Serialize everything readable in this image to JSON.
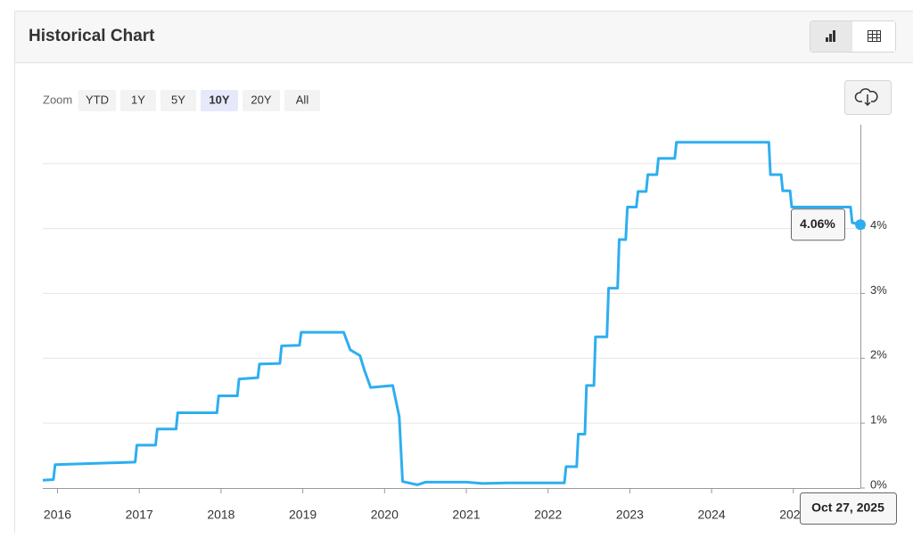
{
  "header": {
    "title": "Historical Chart"
  },
  "zoom": {
    "label": "Zoom",
    "buttons": [
      "YTD",
      "1Y",
      "5Y",
      "10Y",
      "20Y",
      "All"
    ],
    "active_index": 3
  },
  "chart_data": {
    "type": "line",
    "series": [
      {
        "color": "#2eaef0",
        "x": [
          2015.82,
          2015.95,
          2015.97,
          2016.95,
          2016.97,
          2017.2,
          2017.22,
          2017.45,
          2017.47,
          2017.95,
          2017.97,
          2018.2,
          2018.22,
          2018.45,
          2018.47,
          2018.72,
          2018.74,
          2018.96,
          2018.98,
          2019.5,
          2019.58,
          2019.7,
          2019.75,
          2019.83,
          2020.1,
          2020.18,
          2020.22,
          2020.4,
          2020.5,
          2021.0,
          2021.2,
          2021.5,
          2021.6,
          2022.2,
          2022.22,
          2022.35,
          2022.37,
          2022.45,
          2022.47,
          2022.56,
          2022.58,
          2022.72,
          2022.74,
          2022.85,
          2022.87,
          2022.95,
          2022.97,
          2023.08,
          2023.1,
          2023.2,
          2023.22,
          2023.33,
          2023.35,
          2023.55,
          2023.57,
          2024.7,
          2024.72,
          2024.85,
          2024.87,
          2024.96,
          2024.98,
          2025.7,
          2025.72,
          2025.82
        ],
        "values": [
          0.12,
          0.13,
          0.36,
          0.4,
          0.66,
          0.66,
          0.91,
          0.91,
          1.16,
          1.16,
          1.42,
          1.42,
          1.68,
          1.7,
          1.91,
          1.92,
          2.19,
          2.2,
          2.4,
          2.4,
          2.13,
          2.04,
          1.83,
          1.55,
          1.58,
          1.1,
          0.1,
          0.05,
          0.09,
          0.09,
          0.07,
          0.08,
          0.08,
          0.08,
          0.33,
          0.33,
          0.83,
          0.83,
          1.58,
          1.58,
          2.33,
          2.33,
          3.08,
          3.08,
          3.83,
          3.83,
          4.33,
          4.33,
          4.57,
          4.57,
          4.83,
          4.83,
          5.08,
          5.08,
          5.33,
          5.33,
          4.83,
          4.83,
          4.58,
          4.58,
          4.33,
          4.33,
          4.09,
          4.06
        ]
      }
    ],
    "xlim": [
      2015.82,
      2025.82
    ],
    "xticks": [
      2016,
      2017,
      2018,
      2019,
      2020,
      2021,
      2022,
      2023,
      2024,
      2025
    ],
    "ylim": [
      0,
      5.6
    ],
    "yticks": [
      {
        "value": 0,
        "label": "0%"
      },
      {
        "value": 1,
        "label": "1%"
      },
      {
        "value": 2,
        "label": "2%"
      },
      {
        "value": 3,
        "label": "3%"
      },
      {
        "value": 4,
        "label": "4%"
      }
    ],
    "ygrid": [
      1,
      2,
      3,
      4,
      5
    ],
    "tooltip": {
      "value_label": "4.06%",
      "date": "Oct 27, 2025"
    }
  }
}
